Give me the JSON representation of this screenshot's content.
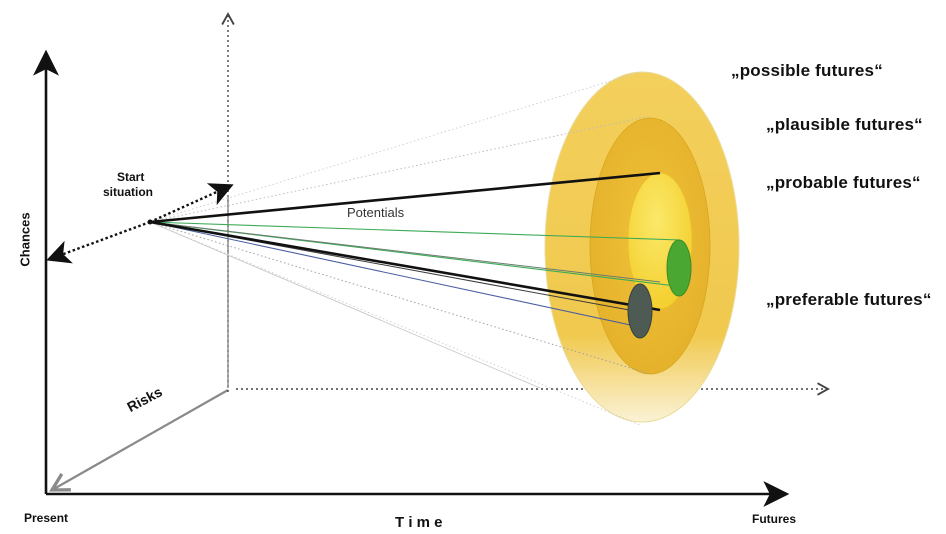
{
  "labels": {
    "chances": "Chances",
    "present": "Present",
    "time": "T i m e",
    "futures": "Futures",
    "risks": "Risks",
    "start_situation_line1": "Start",
    "start_situation_line2": "situation",
    "potentials": "Potentials",
    "possible_futures": "„possible futures“",
    "plausible_futures": "„plausible futures“",
    "probable_futures": "„probable futures“",
    "preferable_futures": "„preferable futures“"
  },
  "colors": {
    "outer_ellipse": "#f2cf5a",
    "middle_ellipse": "#e9bb2c",
    "inner_ellipse": "#f6d93a",
    "green_oval": "#4aa832",
    "dark_oval": "#4e5b54",
    "axis": "#111111",
    "risk_axis": "#8a8a8a",
    "green_line": "#3daa55",
    "blue_line": "#4b5ea0"
  }
}
